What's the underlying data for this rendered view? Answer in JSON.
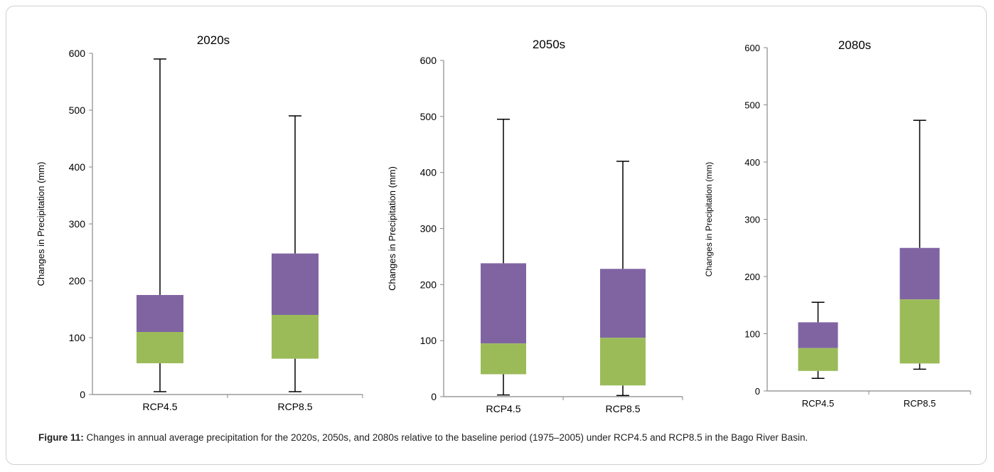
{
  "chart_data": [
    {
      "type": "box",
      "title": "2020s",
      "ylabel": "Changes in Precipitation (mm)",
      "ylim": [
        0,
        600
      ],
      "yticks": [
        0,
        100,
        200,
        300,
        400,
        500,
        600
      ],
      "categories": [
        "RCP4.5",
        "RCP8.5"
      ],
      "boxes": [
        {
          "category": "RCP4.5",
          "min": 5,
          "q1": 55,
          "median": 110,
          "q3": 175,
          "max": 590
        },
        {
          "category": "RCP8.5",
          "min": 5,
          "q1": 63,
          "median": 140,
          "q3": 248,
          "max": 490
        }
      ],
      "colors": {
        "upper": "#8064a2",
        "lower": "#9bbb59"
      }
    },
    {
      "type": "box",
      "title": "2050s",
      "ylabel": "Changes in Precipitation (mm)",
      "ylim": [
        0,
        600
      ],
      "yticks": [
        0,
        100,
        200,
        300,
        400,
        500,
        600
      ],
      "categories": [
        "RCP4.5",
        "RCP8.5"
      ],
      "boxes": [
        {
          "category": "RCP4.5",
          "min": 3,
          "q1": 40,
          "median": 95,
          "q3": 238,
          "max": 495
        },
        {
          "category": "RCP8.5",
          "min": 2,
          "q1": 20,
          "median": 105,
          "q3": 228,
          "max": 420
        }
      ],
      "colors": {
        "upper": "#8064a2",
        "lower": "#9bbb59"
      }
    },
    {
      "type": "box",
      "title": "2080s",
      "ylabel": "Changes in Precipitation (mm)",
      "ylim": [
        0,
        600
      ],
      "yticks": [
        0,
        100,
        200,
        300,
        400,
        500,
        600
      ],
      "categories": [
        "RCP4.5",
        "RCP8.5"
      ],
      "boxes": [
        {
          "category": "RCP4.5",
          "min": 22,
          "q1": 35,
          "median": 75,
          "q3": 120,
          "max": 155
        },
        {
          "category": "RCP8.5",
          "min": 38,
          "q1": 48,
          "median": 160,
          "q3": 250,
          "max": 473
        }
      ],
      "colors": {
        "upper": "#8064a2",
        "lower": "#9bbb59"
      }
    }
  ],
  "caption": {
    "label": "Figure 11:",
    "text": " Changes in annual average precipitation for the 2020s, 2050s, and 2080s relative to the baseline period (1975–2005) under RCP4.5 and RCP8.5 in the Bago River Basin."
  }
}
